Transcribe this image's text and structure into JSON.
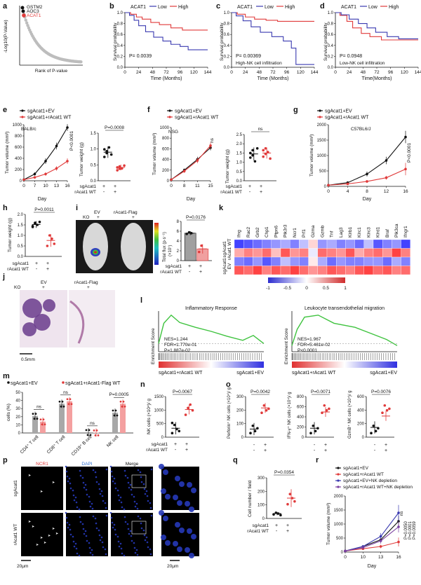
{
  "panels": {
    "a": {
      "label": "a",
      "ylabel": "-Log10(P-Value)",
      "xlabel": "Rank of P-value",
      "genes": [
        "GSTM2",
        "AOC3",
        "ACAT1"
      ]
    },
    "b": {
      "label": "b",
      "legend": [
        "ACAT1",
        "Low",
        "High"
      ],
      "xlabel": "Time (Months)",
      "ylabel": "Survival probability",
      "p": "P= 0.0039",
      "ticks": [
        "0",
        "24",
        "48",
        "72",
        "96",
        "120",
        "144"
      ]
    },
    "c": {
      "label": "c",
      "legend": [
        "ACAT1",
        "Low",
        "High"
      ],
      "xlabel": "Time (Months)",
      "ylabel": "Survival probability",
      "p": "P= 0.00369",
      "note": "High-NK cell infiltration",
      "ticks": [
        "0",
        "24",
        "48",
        "72",
        "96",
        "120",
        "144"
      ]
    },
    "d": {
      "label": "d",
      "legend": [
        "ACAT1",
        "Low",
        "High"
      ],
      "xlabel": "Time(Months)",
      "ylabel": "Survival probability",
      "p": "P= 0.0948",
      "note": "Low-NK cell infiltration",
      "ticks": [
        "0",
        "24",
        "48",
        "72",
        "96",
        "120",
        "144"
      ]
    },
    "e": {
      "label": "e",
      "legend": [
        "sgAcat1+EV",
        "sgAcat1+rAcat1 WT"
      ],
      "model": "BALB/c",
      "ylabel1": "Tumor volume (mm³)",
      "xlabel": "Day",
      "days": [
        "0",
        "7",
        "10",
        "13",
        "16"
      ],
      "p1": "P<0.0001",
      "ylabel2": "Tumor weight (g)",
      "p2": "P=0.0008",
      "yt1": [
        "0",
        "200",
        "400",
        "600",
        "800",
        "1000"
      ],
      "yt2": [
        "0.0",
        "0.5",
        "1.0",
        "1.5"
      ]
    },
    "f": {
      "label": "f",
      "legend": [
        "sgAcat1+EV",
        "sgAcat1+rAcat1 WT"
      ],
      "model": "NSG",
      "ylabel1": "Tumor volume (mm³)",
      "xlabel": "Day",
      "days": [
        "0",
        "8",
        "11",
        "15"
      ],
      "ns": "ns",
      "ylabel2": "Tumor weight (g)",
      "yt1": [
        "0",
        "200",
        "400",
        "600",
        "800",
        "1000"
      ],
      "yt2": [
        "0.0",
        "0.5",
        "1.0",
        "1.5",
        "2.0",
        "2.5"
      ]
    },
    "g": {
      "label": "g",
      "legend": [
        "sgAcat1+EV",
        "sgAcat1+rAcat1 WT"
      ],
      "model": "C57BL6/J",
      "ylabel": "Tumor volume (mm³)",
      "xlabel": "Day",
      "days": [
        "0",
        "4",
        "8",
        "12",
        "16"
      ],
      "p": "P<0.0001",
      "yt": [
        "0",
        "500",
        "1000",
        "1500",
        "2000"
      ]
    },
    "h": {
      "label": "h",
      "ylabel": "Tumor weight (g)",
      "p": "P=0.0011",
      "yt": [
        "0.0",
        "0.5",
        "1.0",
        "1.5",
        "2.0"
      ]
    },
    "i": {
      "label": "i",
      "ko": "KO",
      "ev": "EV",
      "flag": "rAcat1-Flag",
      "plus": "+",
      "ylabel": "Total flux (p·s⁻¹)",
      "ysub": "(×10⁷)",
      "p": "P=0.0176",
      "yt": [
        "0",
        "2",
        "4",
        "6",
        "8"
      ]
    },
    "j": {
      "label": "j",
      "ko": "KO",
      "ev": "EV",
      "flag": "rAcat1-Flag",
      "plus": "+",
      "scale": "0.5mm"
    },
    "k": {
      "label": "k",
      "genes": [
        "Ifng",
        "Rac2",
        "Grb2",
        "Chp1",
        "Ptpn6",
        "Pik3r3",
        "Ncr1",
        "Prf1",
        "Gzma",
        "Gzmb",
        "Tnf",
        "Lag3",
        "Klrb1",
        "Klrc1",
        "Klrc3",
        "Klrd1",
        "Braf",
        "Pik3ca",
        "Ifngr1"
      ],
      "rows": [
        "sgAcat1",
        "rAcat1 WT",
        "sgAcat1",
        "EV"
      ],
      "scale": [
        "-1",
        "-0.5",
        "0",
        "0.5",
        "1"
      ]
    },
    "l": {
      "label": "l",
      "gsea": [
        {
          "title": "Inflammatory Response",
          "nes": "NES=1.244",
          "fdr": "FDR=1.770e-01",
          "pv": "P=1.887e-02",
          "left": "sgAcat1+rAcat1 WT",
          "right": "sgAcat1+EV",
          "ylabel": "Enrichment Score"
        },
        {
          "title": "Leukocyte transendothelial migration",
          "nes": "NES=1.967",
          "fdr": "FDR=5.461e-02",
          "pv": "P<0.0001",
          "left": "sgAcat1+rAcat1 WT",
          "right": "sgAcat1+EV",
          "ylabel": "Enrichment Score"
        }
      ]
    },
    "m": {
      "label": "m",
      "legend": [
        "sgAcat1+EV",
        "sgAcat1+rAcat1-Flag WT"
      ],
      "ylabel": "cells (%)",
      "cats": [
        "CD4⁺ T cell",
        "CD8⁺ T cell",
        "CD19⁺ B cell",
        "NK cell"
      ],
      "sig": [
        "ns",
        "ns",
        "ns",
        "P=0.0005"
      ],
      "yt": [
        "0",
        "10",
        "20",
        "30",
        "40",
        "50"
      ]
    },
    "n": {
      "label": "n",
      "ylabel": "NK cells (×10⁴)/ g",
      "p": "P=0.0067",
      "yt": [
        "0",
        "500",
        "1000",
        "1500"
      ]
    },
    "o": {
      "label": "o",
      "items": [
        {
          "ylabel": "Perforin⁺ NK cells (×10⁴)/ g",
          "p": "P=0.0042",
          "yt": [
            "0",
            "100",
            "200",
            "300"
          ]
        },
        {
          "ylabel": "IFN-γ⁺ NK cells (×10⁴)/ g",
          "p": "P=0.0071",
          "yt": [
            "0",
            "200",
            "400",
            "600",
            "800"
          ]
        },
        {
          "ylabel": "GzmB⁺ NK cells (×10⁴)/ g",
          "p": "P=0.0076",
          "yt": [
            "0",
            "200",
            "400",
            "600"
          ]
        }
      ]
    },
    "p": {
      "label": "p",
      "cols": [
        "NCR1",
        "DAPI",
        "Merge"
      ],
      "rows": [
        "sgAcat1",
        "rAcat1 WT"
      ],
      "scale": "20μm"
    },
    "q": {
      "label": "q",
      "ylabel": "Cell number / field",
      "p": "P=0.0354",
      "yt": [
        "0",
        "100",
        "200",
        "300"
      ]
    },
    "r": {
      "label": "r",
      "legend": [
        "sgAcat1+EV",
        "sgAcat1+rAcat1 WT",
        "sgAcat1+EV+NK depletion",
        "sgAcat1+rAcat1 WT+NK depletion"
      ],
      "ylabel": "Tumor volume (mm³)",
      "xlabel": "Day",
      "days": [
        "0",
        "10",
        "13",
        "16"
      ],
      "yt": [
        "0",
        "500",
        "1000",
        "1500",
        "2000"
      ],
      "sig": [
        "ns",
        "P=0.0050",
        "P=0.0001",
        "P=0.0059"
      ]
    }
  },
  "common": {
    "sg": "sgAcat1",
    "r": "rAcat1 WT",
    "plus": "+",
    "minus": "-"
  },
  "colors": {
    "red": "#e03a3a",
    "blue": "#3a3ab0",
    "black": "#111111",
    "grey": "#bdbdbd",
    "purple": "#7a3fa0"
  }
}
